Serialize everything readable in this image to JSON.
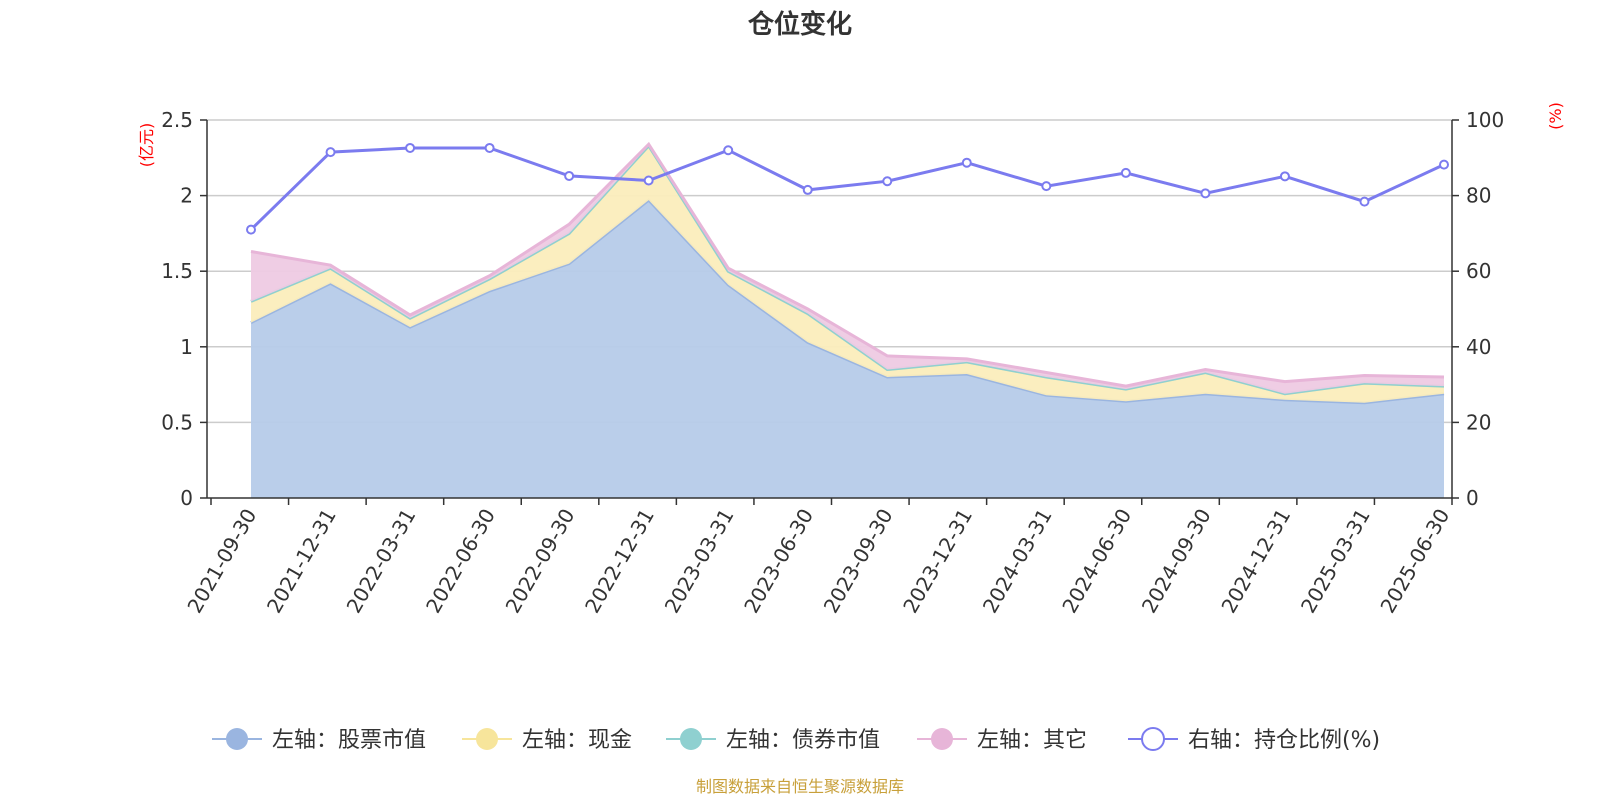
{
  "title": "仓位变化",
  "source": "制图数据来自恒生聚源数据库",
  "colors": {
    "stock": "#9ab5e0",
    "stock_fill": "#b6cbe9",
    "cash": "#f7e59b",
    "cash_fill": "#fbedbc",
    "bond": "#8fd0d0",
    "other": "#e7b5d8",
    "other_fill": "#eecae3",
    "ratio": "#7b7bef",
    "grid": "#cccccc",
    "axis": "#333333",
    "unit": "#ff0000",
    "source": "#c8a03a"
  },
  "chart_data": {
    "type": "area",
    "x": [
      "2021-09-30",
      "2021-12-31",
      "2022-03-31",
      "2022-06-30",
      "2022-09-30",
      "2022-12-31",
      "2023-03-31",
      "2023-06-30",
      "2023-09-30",
      "2023-12-31",
      "2024-03-31",
      "2024-06-30",
      "2024-09-30",
      "2024-12-31",
      "2025-03-31",
      "2025-06-30"
    ],
    "left_axis": {
      "unit": "(亿元)",
      "min": 0,
      "max": 2.5,
      "ticks": [
        "0",
        "0.5",
        "1",
        "1.5",
        "2",
        "2.5"
      ]
    },
    "right_axis": {
      "unit": "(%)",
      "min": 0,
      "max": 100,
      "ticks": [
        "0",
        "20",
        "40",
        "60",
        "80",
        "100"
      ]
    },
    "stacked": true,
    "grid": true,
    "legend_position": "bottom",
    "series": [
      {
        "key": "stock",
        "name": "左轴：股票市值",
        "axis": "left",
        "values": [
          1.16,
          1.42,
          1.13,
          1.37,
          1.55,
          1.97,
          1.41,
          1.03,
          0.8,
          0.82,
          0.68,
          0.64,
          0.69,
          0.65,
          0.63,
          0.69
        ]
      },
      {
        "key": "cash",
        "name": "左轴：现金",
        "axis": "left",
        "values": [
          0.14,
          0.1,
          0.06,
          0.08,
          0.2,
          0.36,
          0.09,
          0.19,
          0.05,
          0.08,
          0.12,
          0.08,
          0.14,
          0.04,
          0.13,
          0.05
        ]
      },
      {
        "key": "bond",
        "name": "左轴：债券市值",
        "axis": "left",
        "values": [
          0,
          0,
          0,
          0,
          0,
          0,
          0,
          0,
          0,
          0,
          0,
          0,
          0,
          0,
          0,
          0
        ]
      },
      {
        "key": "other",
        "name": "左轴：其它",
        "axis": "left",
        "values": [
          0.33,
          0.02,
          0.02,
          0.02,
          0.06,
          0.01,
          0.02,
          0.03,
          0.09,
          0.02,
          0.03,
          0.02,
          0.02,
          0.08,
          0.05,
          0.06
        ]
      },
      {
        "key": "ratio",
        "name": "右轴：持仓比例(%)",
        "axis": "right",
        "type": "line",
        "values": [
          71,
          91.5,
          92.6,
          92.6,
          85.2,
          84.0,
          92.0,
          81.5,
          83.8,
          88.7,
          82.5,
          86.0,
          80.6,
          85.1,
          78.4,
          88.2
        ]
      }
    ]
  }
}
